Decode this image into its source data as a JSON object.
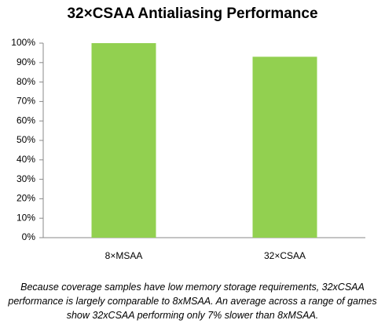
{
  "chart_data": {
    "type": "bar",
    "title": "32×CSAA Antialiasing Performance",
    "categories": [
      "8×MSAA",
      "32×CSAA"
    ],
    "values": [
      100,
      93
    ],
    "color": "#92d050",
    "ylim": [
      0,
      100
    ],
    "yticks": [
      {
        "value": 0,
        "label": "0%"
      },
      {
        "value": 10,
        "label": "10%"
      },
      {
        "value": 20,
        "label": "20%"
      },
      {
        "value": 30,
        "label": "30%"
      },
      {
        "value": 40,
        "label": "40%"
      },
      {
        "value": 50,
        "label": "50%"
      },
      {
        "value": 60,
        "label": "60%"
      },
      {
        "value": 70,
        "label": "70%"
      },
      {
        "value": 80,
        "label": "80%"
      },
      {
        "value": 90,
        "label": "90%"
      },
      {
        "value": 100,
        "label": "100%"
      }
    ],
    "grid": false,
    "caption": "Because coverage samples have low memory storage requirements, 32xCSAA performance is largely comparable to 8xMSAA. An average across a range of games show 32xCSAA performing only 7% slower than 8xMSAA."
  }
}
